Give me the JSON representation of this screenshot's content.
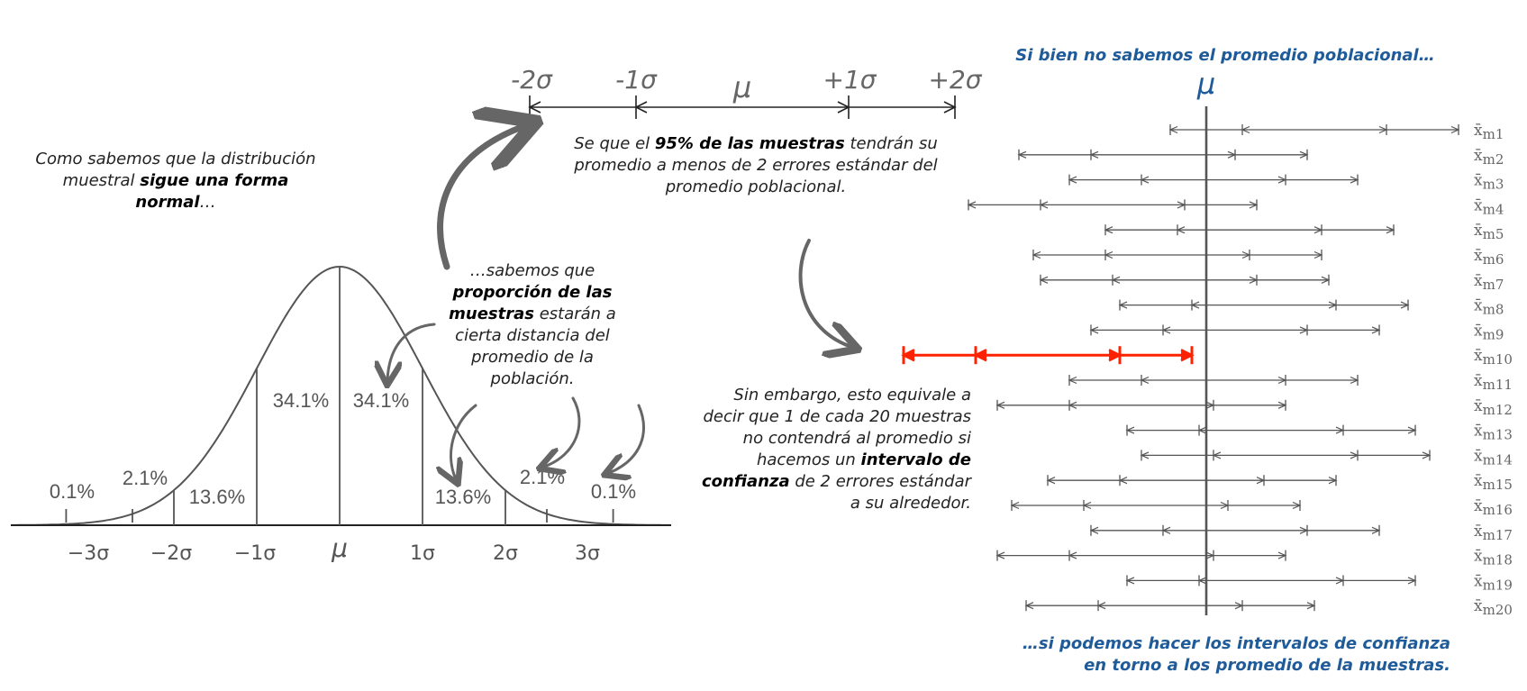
{
  "left": {
    "intro": {
      "pre": "Como sabemos que la distribución muestral ",
      "bold": "sigue una forma normal",
      "post": "…"
    },
    "explain": {
      "pre": "…sabemos que ",
      "bold": "proporción de las muestras",
      "post": " estarán a cierta distancia del promedio de la población."
    },
    "areas": [
      "0.1%",
      "2.1%",
      "13.6%",
      "34.1%",
      "34.1%",
      "13.6%",
      "2.1%",
      "0.1%"
    ],
    "ticks": [
      "−3σ",
      "−2σ",
      "−1σ",
      "μ",
      "1σ",
      "2σ",
      "3σ"
    ]
  },
  "top": {
    "labels": [
      "-2σ",
      "-1σ",
      "μ",
      "+1σ",
      "+2σ"
    ],
    "statement": {
      "pre": "Se que el ",
      "bold": "95% de las muestras",
      "post": " tendrán su promedio a menos de 2 errores estándar del promedio poblacional."
    }
  },
  "middle": {
    "caveat": {
      "pre": "Sin embargo, esto equivale a decir que 1 de cada 20 muestras no contendrá al promedio si hacemos un ",
      "bold": "intervalo de confianza",
      "post": " de 2 errores estándar a su alrededor."
    }
  },
  "right": {
    "top_caption": "Si bien no sabemos el promedio poblacional…",
    "mu_label": "μ",
    "bottom_caption": "…si podemos hacer los intervalos de confianza en torno a los promedio de la muestras.",
    "sample_prefix": "x̄",
    "mu_value": 0,
    "highlight_index": 9,
    "samples": [
      {
        "sub": "m1",
        "mean": 1.5
      },
      {
        "sub": "m2",
        "mean": -0.6
      },
      {
        "sub": "m3",
        "mean": 0.1
      },
      {
        "sub": "m4",
        "mean": -1.3
      },
      {
        "sub": "m5",
        "mean": 0.6
      },
      {
        "sub": "m6",
        "mean": -0.4
      },
      {
        "sub": "m7",
        "mean": -0.3
      },
      {
        "sub": "m8",
        "mean": 0.8
      },
      {
        "sub": "m9",
        "mean": 0.4
      },
      {
        "sub": "m10",
        "mean": -2.2
      },
      {
        "sub": "m11",
        "mean": 0.1
      },
      {
        "sub": "m12",
        "mean": -0.9
      },
      {
        "sub": "m13",
        "mean": 0.9
      },
      {
        "sub": "m14",
        "mean": 1.1
      },
      {
        "sub": "m15",
        "mean": -0.2
      },
      {
        "sub": "m16",
        "mean": -0.7
      },
      {
        "sub": "m17",
        "mean": 0.4
      },
      {
        "sub": "m18",
        "mean": -0.9
      },
      {
        "sub": "m19",
        "mean": 0.9
      },
      {
        "sub": "m20",
        "mean": -0.5
      }
    ]
  },
  "colors": {
    "line": "#555555",
    "curve": "#555555",
    "highlight": "#ff2200",
    "blue": "#1f5b99",
    "arrow": "#666666"
  }
}
